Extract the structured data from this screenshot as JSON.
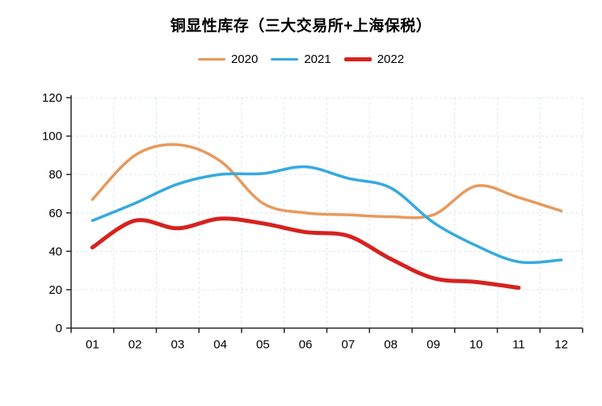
{
  "title": "铜显性库存（三大交易所+上海保税）",
  "chart_data": {
    "type": "line",
    "title": "铜显性库存（三大交易所+上海保税）",
    "categories": [
      "01",
      "02",
      "03",
      "04",
      "05",
      "06",
      "07",
      "08",
      "09",
      "10",
      "11",
      "12"
    ],
    "series": [
      {
        "name": "2020",
        "color": "#E8995C",
        "line_width": 3.5,
        "values": [
          67,
          90,
          95.5,
          87,
          65,
          60,
          59,
          58,
          59,
          74,
          68,
          61
        ]
      },
      {
        "name": "2021",
        "color": "#35AADF",
        "line_width": 3.5,
        "values": [
          56,
          65,
          75,
          80,
          80.5,
          84,
          78,
          73,
          55,
          43,
          34.5,
          35.5
        ]
      },
      {
        "name": "2022",
        "color": "#D6221F",
        "line_width": 5,
        "values": [
          42,
          56,
          52,
          57,
          54.5,
          50,
          48,
          36,
          26,
          24,
          21,
          null
        ]
      }
    ],
    "xlabel": "",
    "ylabel": "",
    "ylim": [
      0,
      120
    ],
    "ytick_step": 20,
    "grid": true,
    "grid_style": "dashed",
    "grid_color": "#dbe5f1",
    "axis_color": "#262626",
    "tick_label_color": "#000000",
    "legend_position": "top",
    "smooth": true
  }
}
